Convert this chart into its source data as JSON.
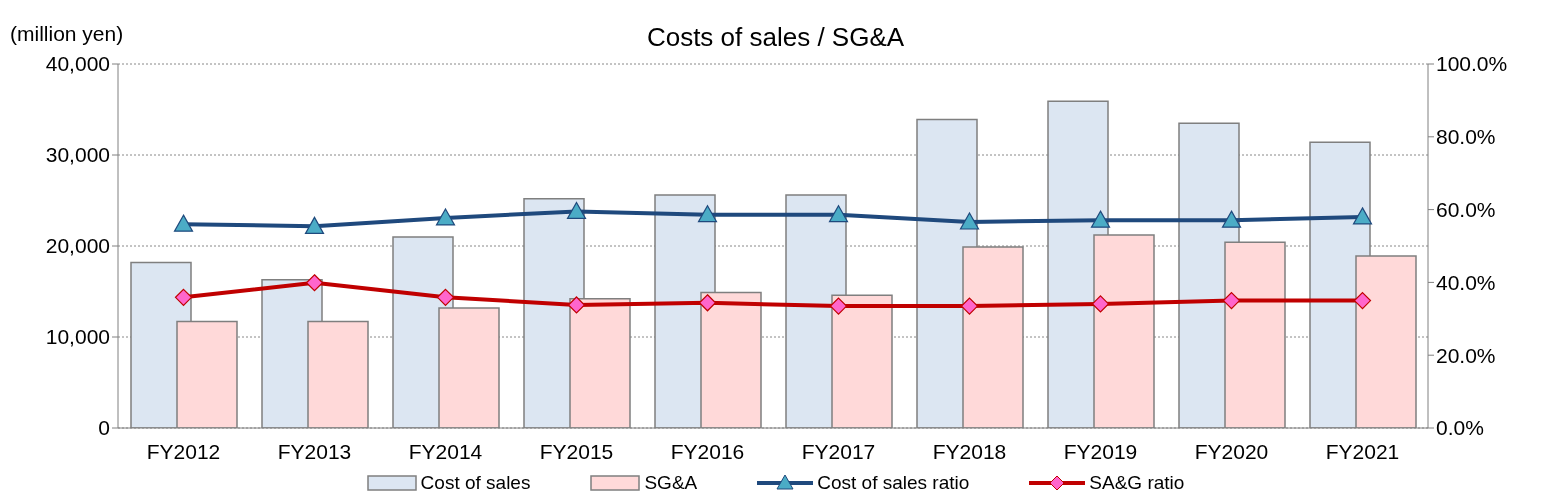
{
  "chart_data": {
    "type": "bar",
    "title": "Costs of sales / SG&A",
    "ylabel": "(million yen)",
    "categories": [
      "FY2012",
      "FY2013",
      "FY2014",
      "FY2015",
      "FY2016",
      "FY2017",
      "FY2018",
      "FY2019",
      "FY2020",
      "FY2021"
    ],
    "series": [
      {
        "name": "Cost of sales",
        "color": "#dce6f2",
        "values": [
          18200,
          16300,
          21000,
          25200,
          25600,
          25600,
          33900,
          35900,
          33500,
          31400
        ]
      },
      {
        "name": "SG&A",
        "color": "#ffd9d9",
        "values": [
          11700,
          11700,
          13200,
          14200,
          14900,
          14600,
          19900,
          21200,
          20400,
          18900
        ]
      },
      {
        "name": "Cost of sales ratio",
        "type": "line",
        "axis": "y2",
        "marker": "triangle",
        "color": "#1f497d",
        "values": [
          56.0,
          55.4,
          57.7,
          59.5,
          58.6,
          58.6,
          56.6,
          57.1,
          57.1,
          58.0
        ]
      },
      {
        "name": "SA&G ratio",
        "type": "line",
        "axis": "y2",
        "marker": "diamond",
        "color": "#c00000",
        "values": [
          35.9,
          39.9,
          35.9,
          33.8,
          34.4,
          33.5,
          33.5,
          34.1,
          35.0,
          35.0
        ]
      }
    ],
    "ylim": [
      0,
      40000
    ],
    "yticks": [
      {
        "value": 0,
        "label": "0"
      },
      {
        "value": 10000,
        "label": "10,000"
      },
      {
        "value": 20000,
        "label": "20,000"
      },
      {
        "value": 30000,
        "label": "30,000"
      },
      {
        "value": 40000,
        "label": "40,000"
      }
    ],
    "y2lim": [
      0,
      100
    ],
    "y2ticks": [
      {
        "value": 0,
        "label": "0.0%"
      },
      {
        "value": 20,
        "label": "20.0%"
      },
      {
        "value": 40,
        "label": "40.0%"
      },
      {
        "value": 60,
        "label": "60.0%"
      },
      {
        "value": 80,
        "label": "80.0%"
      },
      {
        "value": 100,
        "label": "100.0%"
      }
    ],
    "grid": "y",
    "legend": "bottom",
    "line_style": "solid"
  }
}
